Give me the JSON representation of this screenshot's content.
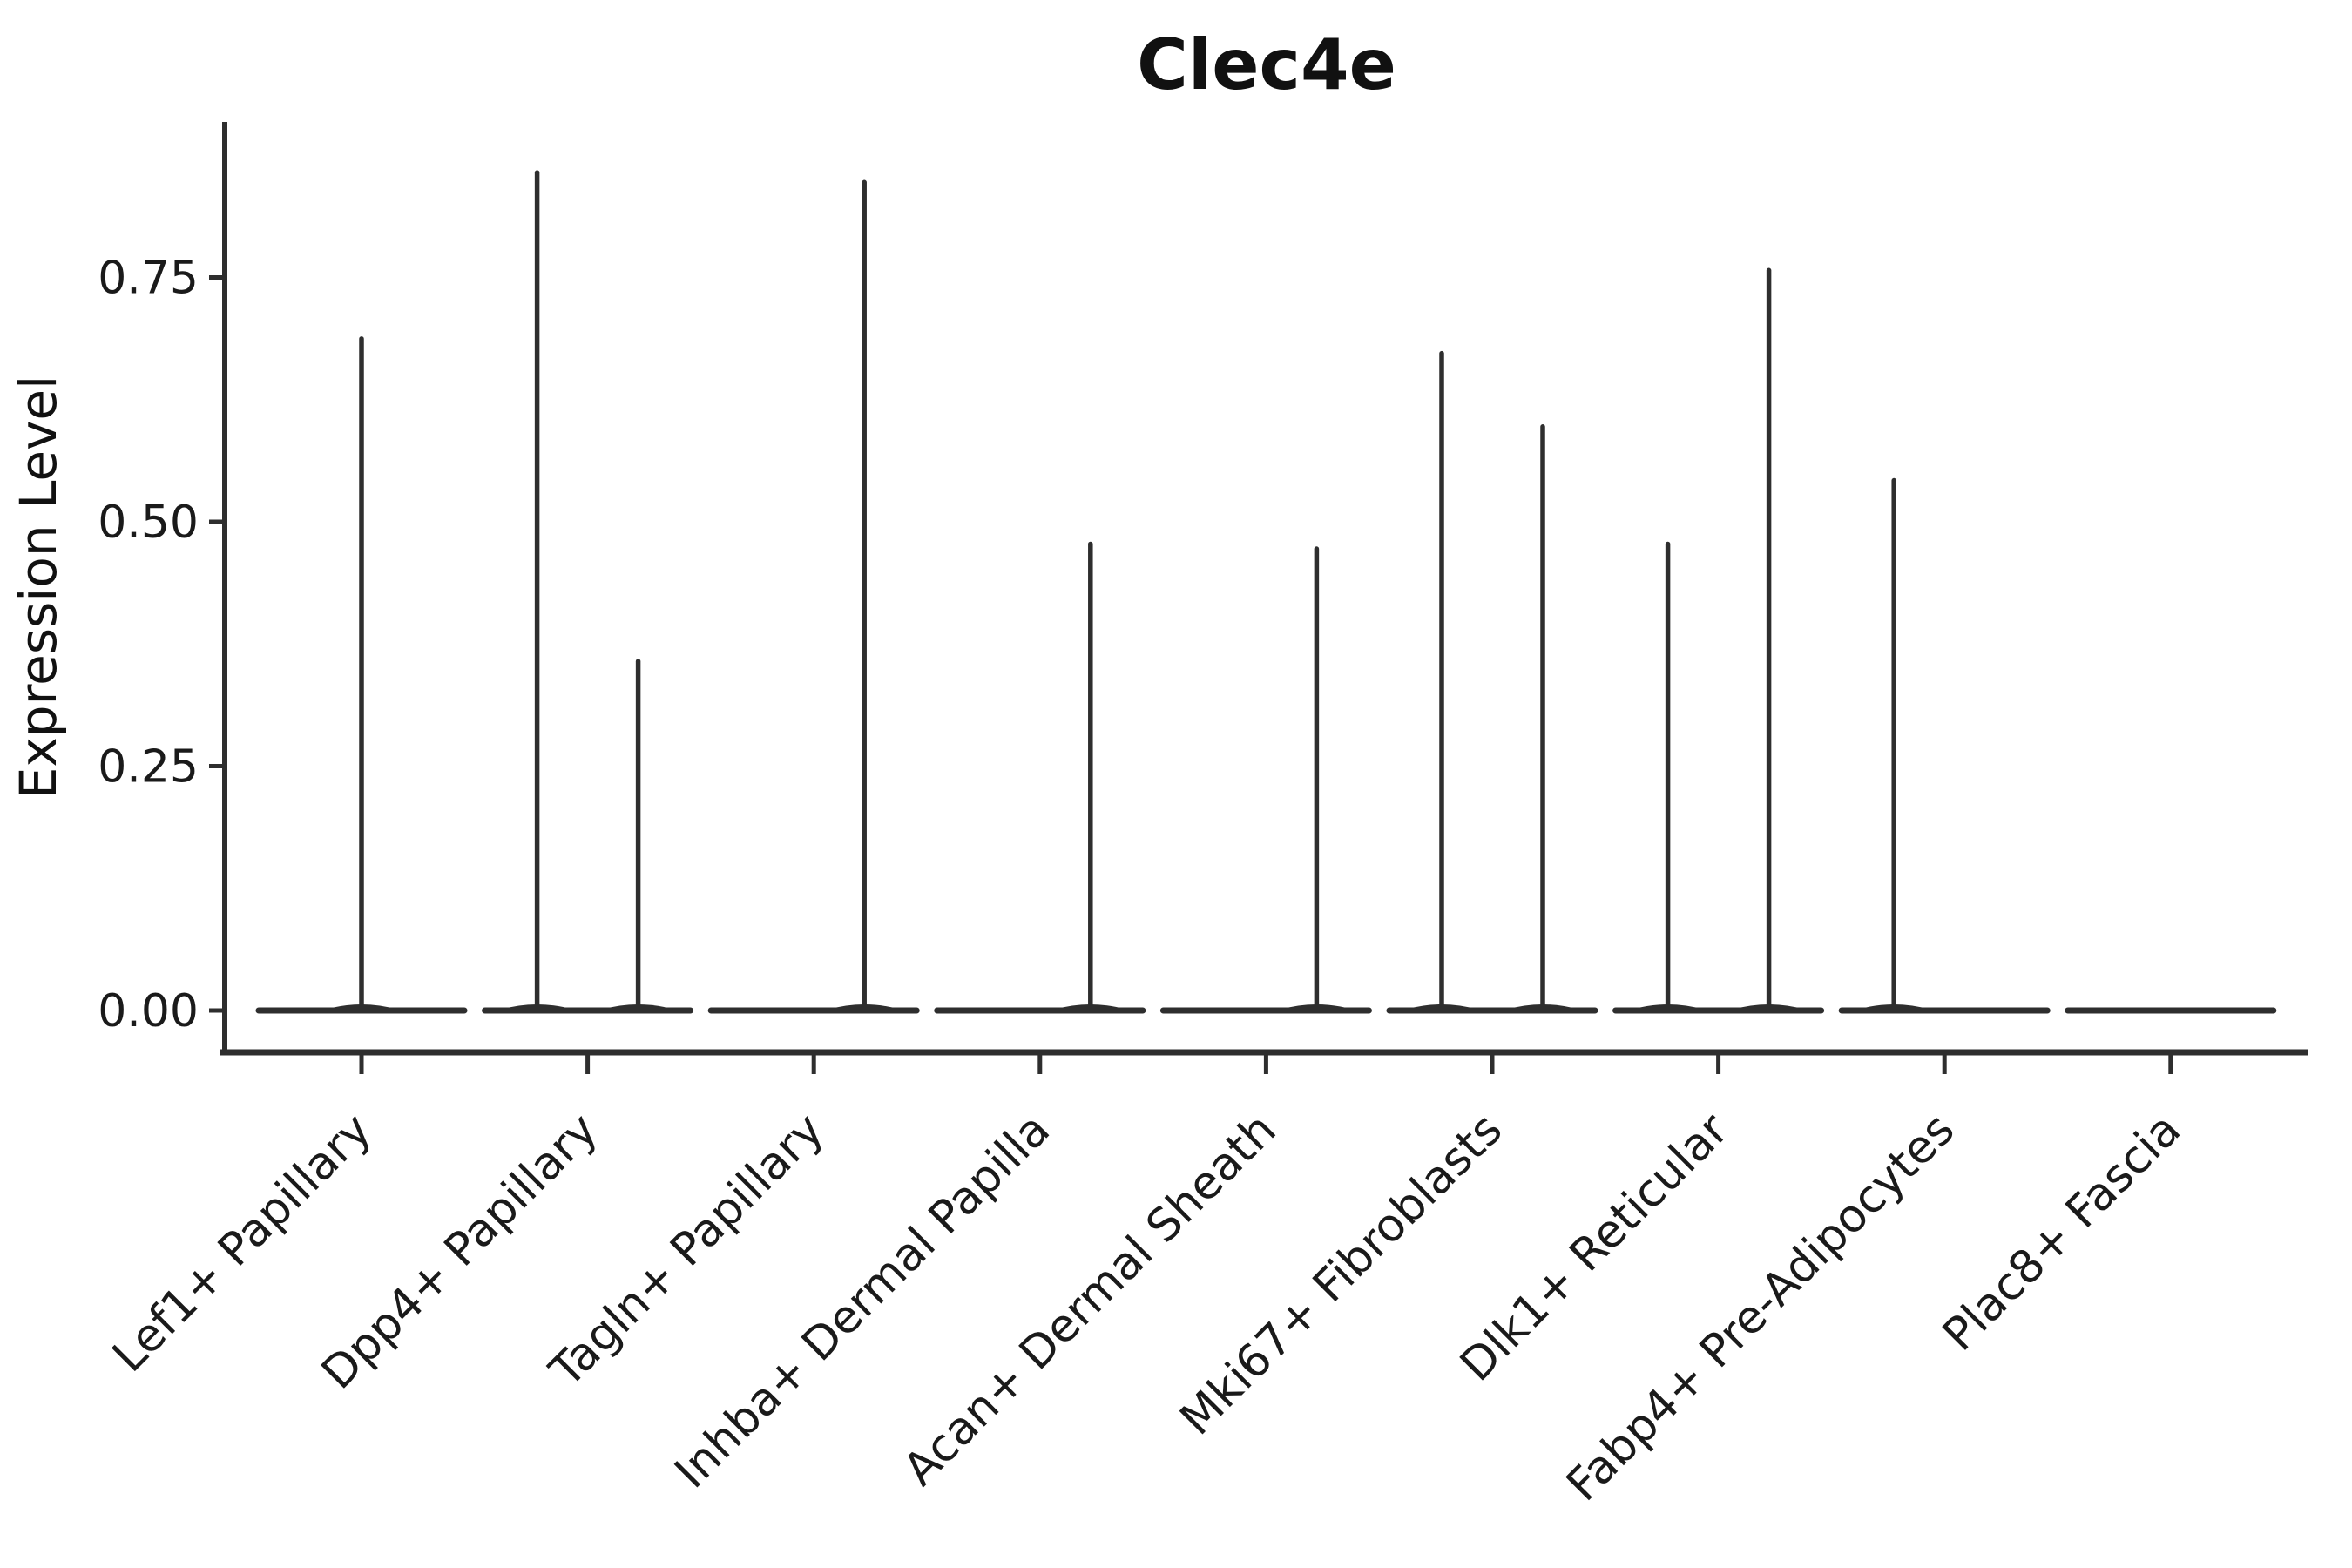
{
  "chart_data": {
    "type": "violin",
    "title": "Clec4e",
    "ylabel": "Expression Level",
    "xlabel": "",
    "legend_position": "none",
    "grid": false,
    "background": "#ffffff",
    "ink_color": "#2e2e2e",
    "text_color": "#1a1a1a",
    "y_tick_labels": [
      "0.00",
      "0.25",
      "0.50",
      "0.75"
    ],
    "y_tick_values": [
      0,
      0.25,
      0.5,
      0.75
    ],
    "ylim": [
      -0.04,
      0.91
    ],
    "x_tick_angle_deg": 45,
    "categories": [
      "Lef1+ Papillary",
      "Dpp4+ Papillary",
      "Tagln+ Papillary",
      "Inhba+ Dermal Papilla",
      "Acan+ Dermal Sheath",
      "Mki67+ Fibroblasts",
      "Dlk1+ Reticular",
      "Fabp4+ Pre-Adipocytes",
      "Plac8+ Fascia"
    ],
    "violins": [
      {
        "category": "Lef1+ Papillary",
        "baseline": 0,
        "spikes": [
          {
            "position": "center",
            "max": 0.69
          }
        ]
      },
      {
        "category": "Dpp4+ Papillary",
        "baseline": 0,
        "spikes": [
          {
            "position": "left",
            "max": 0.86
          },
          {
            "position": "right",
            "max": 0.36
          }
        ]
      },
      {
        "category": "Tagln+ Papillary",
        "baseline": 0,
        "spikes": [
          {
            "position": "right",
            "max": 0.85
          }
        ]
      },
      {
        "category": "Inhba+ Dermal Papilla",
        "baseline": 0,
        "spikes": [
          {
            "position": "right",
            "max": 0.48
          }
        ]
      },
      {
        "category": "Acan+ Dermal Sheath",
        "baseline": 0,
        "spikes": [
          {
            "position": "right",
            "max": 0.475
          }
        ]
      },
      {
        "category": "Mki67+ Fibroblasts",
        "baseline": 0,
        "spikes": [
          {
            "position": "left",
            "max": 0.675
          },
          {
            "position": "right",
            "max": 0.6
          }
        ]
      },
      {
        "category": "Dlk1+ Reticular",
        "baseline": 0,
        "spikes": [
          {
            "position": "left",
            "max": 0.48
          },
          {
            "position": "right",
            "max": 0.76
          }
        ]
      },
      {
        "category": "Fabp4+ Pre-Adipocytes",
        "baseline": 0,
        "spikes": [
          {
            "position": "left",
            "max": 0.545
          }
        ]
      },
      {
        "category": "Plac8+ Fascia",
        "baseline": 0,
        "spikes": []
      }
    ]
  }
}
